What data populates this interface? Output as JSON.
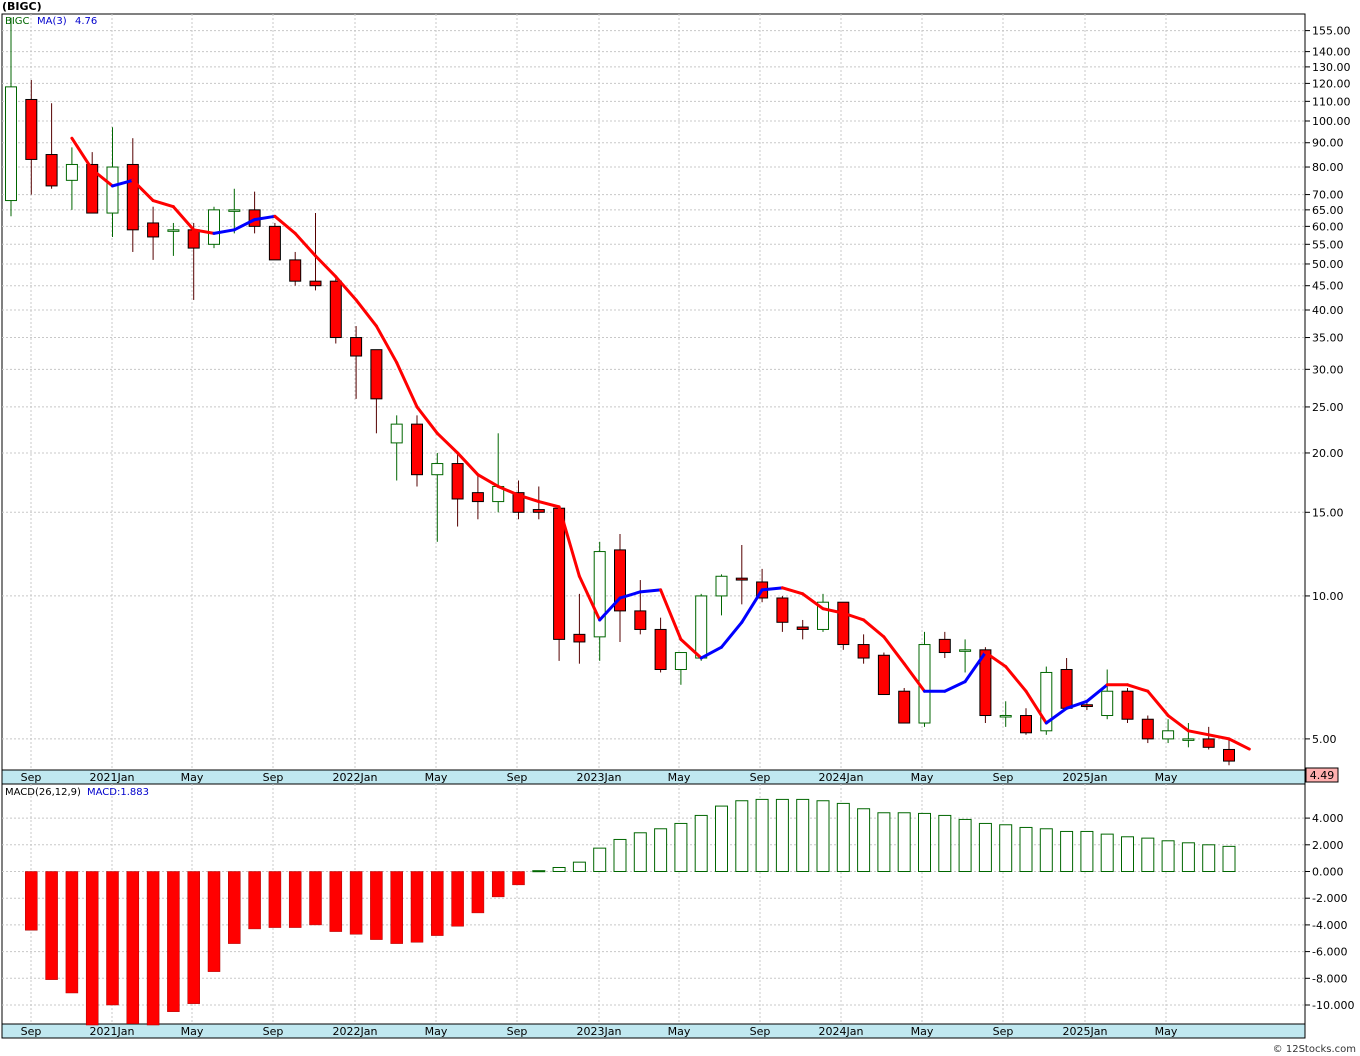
{
  "title": "(BIGC)",
  "footer": "© 12Stocks.com",
  "chart_data": [
    {
      "type": "candlestick",
      "legend": {
        "symbol": "BIGC",
        "ma_label": "MA(3)",
        "ma_value": "4.76"
      },
      "y_scale": "log",
      "y_ticks": [
        "155.00",
        "140.00",
        "130.00",
        "120.00",
        "110.00",
        "100.00",
        "90.00",
        "80.00",
        "70.00",
        "65.00",
        "60.00",
        "55.00",
        "50.00",
        "45.00",
        "40.00",
        "35.00",
        "30.00",
        "25.00",
        "20.00",
        "15.00",
        "10.00",
        "5.00"
      ],
      "last_price": "4.49",
      "x_labels": [
        "Sep",
        "2021Jan",
        "May",
        "Sep",
        "2022Jan",
        "May",
        "Sep",
        "2023Jan",
        "May",
        "Sep",
        "2024Jan",
        "May",
        "Sep",
        "2025Jan",
        "May"
      ],
      "candles": [
        {
          "o": 68,
          "h": 165,
          "l": 63,
          "c": 118
        },
        {
          "o": 111,
          "h": 122,
          "l": 70,
          "c": 83
        },
        {
          "o": 85,
          "h": 109,
          "l": 72,
          "c": 73
        },
        {
          "o": 75,
          "h": 88,
          "l": 65,
          "c": 81
        },
        {
          "o": 81,
          "h": 86,
          "l": 64,
          "c": 64
        },
        {
          "o": 64,
          "h": 97,
          "l": 57,
          "c": 80
        },
        {
          "o": 81,
          "h": 92,
          "l": 53,
          "c": 59
        },
        {
          "o": 61,
          "h": 66,
          "l": 51,
          "c": 57
        },
        {
          "o": 59,
          "h": 61,
          "l": 52,
          "c": 59
        },
        {
          "o": 59,
          "h": 61,
          "l": 42,
          "c": 54
        },
        {
          "o": 55,
          "h": 66,
          "l": 54,
          "c": 65
        },
        {
          "o": 65,
          "h": 72,
          "l": 58,
          "c": 65
        },
        {
          "o": 65,
          "h": 71,
          "l": 58,
          "c": 60
        },
        {
          "o": 60,
          "h": 61,
          "l": 51,
          "c": 51
        },
        {
          "o": 51,
          "h": 53,
          "l": 45,
          "c": 46
        },
        {
          "o": 46,
          "h": 64,
          "l": 44,
          "c": 45
        },
        {
          "o": 46,
          "h": 47,
          "l": 34,
          "c": 35
        },
        {
          "o": 35,
          "h": 37,
          "l": 26,
          "c": 32
        },
        {
          "o": 33,
          "h": 33,
          "l": 22,
          "c": 26
        },
        {
          "o": 21,
          "h": 24,
          "l": 17.5,
          "c": 23
        },
        {
          "o": 23,
          "h": 24,
          "l": 17,
          "c": 18
        },
        {
          "o": 18,
          "h": 20,
          "l": 13,
          "c": 19
        },
        {
          "o": 19,
          "h": 20,
          "l": 14,
          "c": 16
        },
        {
          "o": 16.5,
          "h": 18,
          "l": 14.5,
          "c": 15.8
        },
        {
          "o": 15.8,
          "h": 22,
          "l": 15,
          "c": 17
        },
        {
          "o": 16.5,
          "h": 17.5,
          "l": 14.5,
          "c": 15
        },
        {
          "o": 15.2,
          "h": 17,
          "l": 14.5,
          "c": 15
        },
        {
          "o": 15.3,
          "h": 15.5,
          "l": 7.3,
          "c": 8.1
        },
        {
          "o": 8.3,
          "h": 10.1,
          "l": 7.2,
          "c": 8.0
        },
        {
          "o": 8.2,
          "h": 13,
          "l": 7.3,
          "c": 12.4
        },
        {
          "o": 12.5,
          "h": 13.5,
          "l": 8,
          "c": 9.3
        },
        {
          "o": 9.3,
          "h": 10.8,
          "l": 8.3,
          "c": 8.5
        },
        {
          "o": 8.5,
          "h": 9,
          "l": 6.9,
          "c": 7.0
        },
        {
          "o": 7.0,
          "h": 7.6,
          "l": 6.5,
          "c": 7.6
        },
        {
          "o": 7.4,
          "h": 10.1,
          "l": 7.3,
          "c": 10.0
        },
        {
          "o": 10.0,
          "h": 11.1,
          "l": 9.1,
          "c": 11.0
        },
        {
          "o": 10.9,
          "h": 12.8,
          "l": 9.6,
          "c": 10.8
        },
        {
          "o": 10.7,
          "h": 11.4,
          "l": 9.7,
          "c": 9.9
        },
        {
          "o": 9.9,
          "h": 10.0,
          "l": 8.4,
          "c": 8.8
        },
        {
          "o": 8.6,
          "h": 8.9,
          "l": 8.1,
          "c": 8.5
        },
        {
          "o": 8.5,
          "h": 10.1,
          "l": 8.4,
          "c": 9.7
        },
        {
          "o": 9.7,
          "h": 9.7,
          "l": 7.7,
          "c": 7.9
        },
        {
          "o": 7.9,
          "h": 8.3,
          "l": 7.2,
          "c": 7.4
        },
        {
          "o": 7.5,
          "h": 7.6,
          "l": 6.2,
          "c": 6.2
        },
        {
          "o": 6.3,
          "h": 6.4,
          "l": 5.4,
          "c": 5.4
        },
        {
          "o": 5.4,
          "h": 8.4,
          "l": 5.3,
          "c": 7.9
        },
        {
          "o": 8.1,
          "h": 8.4,
          "l": 7.4,
          "c": 7.6
        },
        {
          "o": 7.7,
          "h": 8.1,
          "l": 6.9,
          "c": 7.7
        },
        {
          "o": 7.7,
          "h": 7.8,
          "l": 5.4,
          "c": 5.6
        },
        {
          "o": 5.6,
          "h": 6.0,
          "l": 5.3,
          "c": 5.6
        },
        {
          "o": 5.6,
          "h": 5.8,
          "l": 5.1,
          "c": 5.15
        },
        {
          "o": 5.2,
          "h": 7.1,
          "l": 5.1,
          "c": 6.9
        },
        {
          "o": 7.0,
          "h": 7.4,
          "l": 5.8,
          "c": 5.8
        },
        {
          "o": 5.9,
          "h": 6.0,
          "l": 5.75,
          "c": 5.85
        },
        {
          "o": 5.6,
          "h": 7.0,
          "l": 5.5,
          "c": 6.3
        },
        {
          "o": 6.3,
          "h": 6.4,
          "l": 5.4,
          "c": 5.5
        },
        {
          "o": 5.5,
          "h": 5.6,
          "l": 4.9,
          "c": 5.0
        },
        {
          "o": 5.0,
          "h": 5.5,
          "l": 4.9,
          "c": 5.2
        },
        {
          "o": 5.0,
          "h": 5.4,
          "l": 4.8,
          "c": 5.0
        },
        {
          "o": 5.0,
          "h": 5.3,
          "l": 4.75,
          "c": 4.8
        },
        {
          "o": 4.75,
          "h": 5.0,
          "l": 4.4,
          "c": 4.49
        }
      ],
      "ma": [
        null,
        null,
        92,
        79,
        73,
        75,
        68,
        66,
        59,
        58,
        59,
        62,
        63,
        58,
        52,
        47,
        42,
        37,
        31,
        25,
        22,
        20,
        18,
        17,
        16.3,
        15.8,
        15.4,
        11,
        8.9,
        9.9,
        10.2,
        10.3,
        8.1,
        7.4,
        7.8,
        8.8,
        10.3,
        10.4,
        10.1,
        9.4,
        9.2,
        8.9,
        8.2,
        7.2,
        6.3,
        6.3,
        6.6,
        7.6,
        7.1,
        6.3,
        5.4,
        5.8,
        6.0,
        6.5,
        6.5,
        6.3,
        5.6,
        5.2,
        5.1,
        5.0,
        4.76
      ],
      "ma_up": [
        false,
        false,
        false,
        false,
        false,
        true,
        false,
        false,
        false,
        false,
        true,
        true,
        true,
        false,
        false,
        false,
        false,
        false,
        false,
        false,
        false,
        false,
        false,
        false,
        false,
        false,
        false,
        false,
        false,
        true,
        true,
        true,
        false,
        false,
        true,
        true,
        true,
        true,
        false,
        false,
        false,
        false,
        false,
        false,
        false,
        true,
        true,
        true,
        false,
        false,
        false,
        true,
        true,
        true,
        false,
        false,
        false,
        false,
        false,
        false,
        false
      ]
    },
    {
      "type": "bar",
      "legend": {
        "name": "MACD(26,12,9)",
        "value_label": "MACD:1.883"
      },
      "y_ticks": [
        "4.000",
        "2.000",
        "0.000",
        "-2.000",
        "-4.000",
        "-6.000",
        "-8.000",
        "-10.000"
      ],
      "x_labels": [
        "Sep",
        "2021Jan",
        "May",
        "Sep",
        "2022Jan",
        "May",
        "Sep",
        "2023Jan",
        "May",
        "Sep",
        "2024Jan",
        "May",
        "Sep",
        "2025Jan",
        "May"
      ],
      "values": [
        -4.4,
        -8.1,
        -9.1,
        -11.5,
        -10.0,
        -11.4,
        -11.5,
        -10.5,
        -9.9,
        -7.5,
        -5.4,
        -4.3,
        -4.2,
        -4.2,
        -4.0,
        -4.5,
        -4.7,
        -5.1,
        -5.4,
        -5.3,
        -4.8,
        -4.1,
        -3.1,
        -1.9,
        -1.0,
        0.06,
        0.3,
        0.7,
        1.75,
        2.4,
        2.9,
        3.2,
        3.6,
        4.2,
        4.9,
        5.3,
        5.4,
        5.4,
        5.4,
        5.3,
        5.1,
        4.7,
        4.4,
        4.4,
        4.35,
        4.2,
        3.9,
        3.6,
        3.5,
        3.3,
        3.2,
        3.0,
        3.0,
        2.8,
        2.6,
        2.5,
        2.3,
        2.15,
        2.0,
        1.883
      ]
    }
  ],
  "colors": {
    "up": "#ffffff",
    "down": "#ff0000",
    "ma_down": "#ff0000",
    "ma_up": "#0000ff",
    "macd_pos_stroke": "#006600",
    "macd_neg": "#ff0000",
    "grid": "#c8c8c8",
    "axis_bar": "#c0e8f0"
  }
}
